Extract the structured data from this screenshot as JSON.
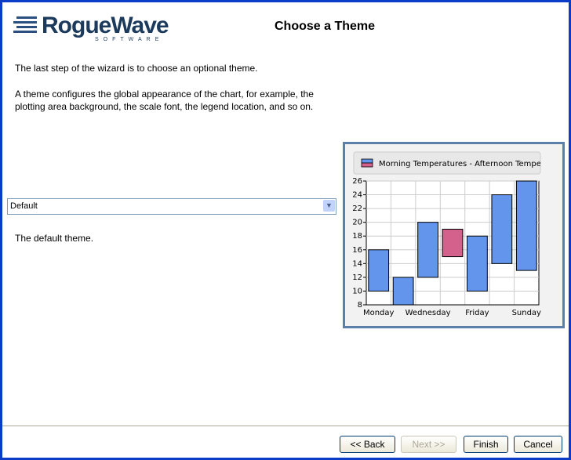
{
  "header": {
    "logo": "RogueWave",
    "logo_sub": "SOFTWARE",
    "title": "Choose a Theme"
  },
  "intro": [
    "The last step of the wizard is to choose an optional theme.",
    "A theme configures the global appearance of the chart, for example, the plotting area background, the scale font, the legend location, and so on."
  ],
  "theme_select": {
    "value": "Default"
  },
  "theme_description": "The default theme.",
  "chart_data": {
    "type": "floating-bar",
    "legend": "Morning Temperatures - Afternoon Temper",
    "categories": [
      "Monday",
      null,
      "Wednesday",
      null,
      "Friday",
      null,
      "Sunday"
    ],
    "morning": [
      10,
      8,
      12,
      19,
      10,
      14,
      13
    ],
    "afternoon": [
      16,
      12,
      20,
      15,
      18,
      24,
      26
    ],
    "color_up": "#6495ed",
    "color_down": "#d4608c",
    "ylim": [
      8,
      26
    ],
    "yticks": [
      8,
      10,
      12,
      14,
      16,
      18,
      20,
      22,
      24,
      26
    ],
    "grid": true
  },
  "buttons": {
    "back": "<< Back",
    "next": "Next >>",
    "finish": "Finish",
    "cancel": "Cancel"
  }
}
